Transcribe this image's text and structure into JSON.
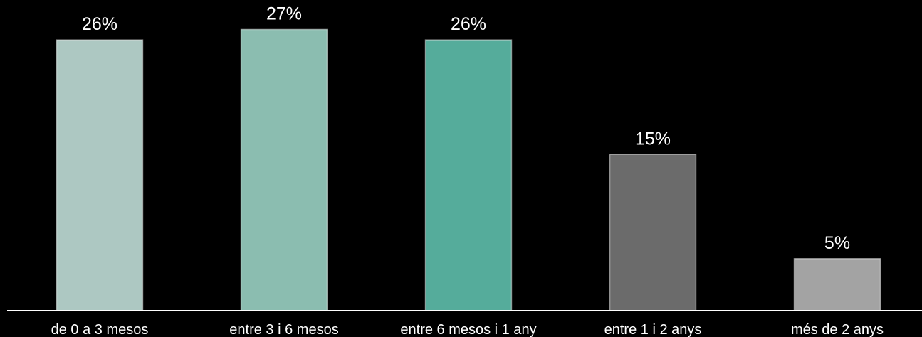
{
  "chart_data": {
    "type": "bar",
    "categories": [
      "de 0 a 3 mesos",
      "entre 3 i 6 mesos",
      "entre 6 mesos i 1 any",
      "entre 1 i 2 anys",
      "més de 2 anys"
    ],
    "values": [
      26,
      27,
      26,
      15,
      5
    ],
    "value_labels": [
      "26%",
      "27%",
      "26%",
      "15%",
      "5%"
    ],
    "colors": [
      "#adc8c2",
      "#8bbdb0",
      "#55ac9b",
      "#6b6b6b",
      "#a3a3a3"
    ],
    "ylim": [
      0,
      30
    ],
    "grid": false,
    "legend": "none",
    "background": "#000000",
    "axis_color": "#ffffff",
    "text_color": "#ffffff"
  }
}
